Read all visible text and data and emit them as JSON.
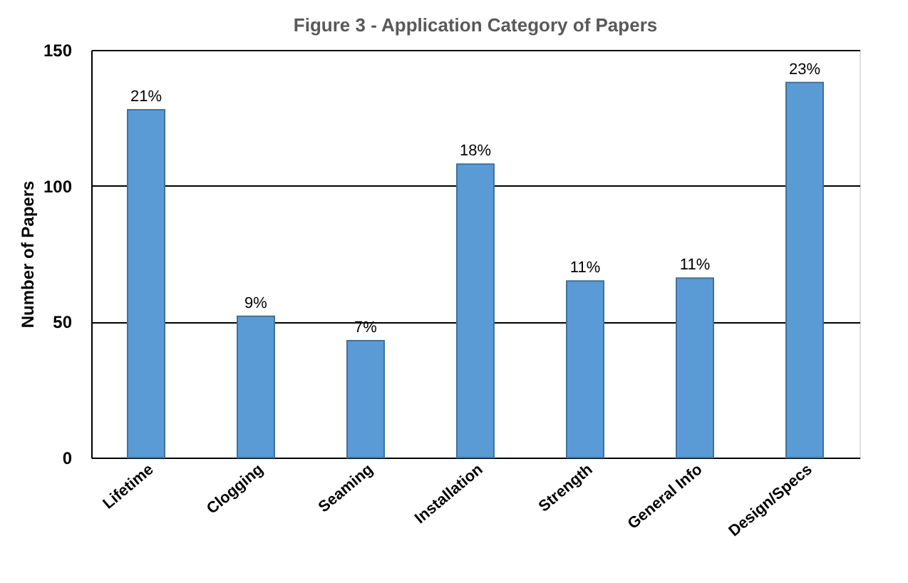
{
  "chart_data": {
    "type": "bar",
    "title": "Figure 3 - Application Category of Papers",
    "ylabel": "Number of Papers",
    "categories": [
      "Lifetime",
      "Clogging",
      "Seaming",
      "Installation",
      "Strength",
      "General Info",
      "Design/Specs"
    ],
    "values": [
      128,
      52,
      43,
      108,
      65,
      66,
      138
    ],
    "annotations": [
      {
        "text": "21%",
        "x": "Lifetime",
        "y": 128
      },
      {
        "text": "9%",
        "x": "Clogging",
        "y": 52
      },
      {
        "text": "7%",
        "x": "Seaming",
        "y": 43
      },
      {
        "text": "18%",
        "x": "Installation",
        "y": 108
      },
      {
        "text": "11%",
        "x": "Strength",
        "y": 65
      },
      {
        "text": "11%",
        "x": "General Info",
        "y": 66
      },
      {
        "text": "23%",
        "x": "Design/Specs",
        "y": 138
      }
    ],
    "color": "#5b9bd5",
    "ylim": [
      0,
      150
    ],
    "yticks": [
      0,
      50,
      100,
      150
    ],
    "grid": "y"
  }
}
